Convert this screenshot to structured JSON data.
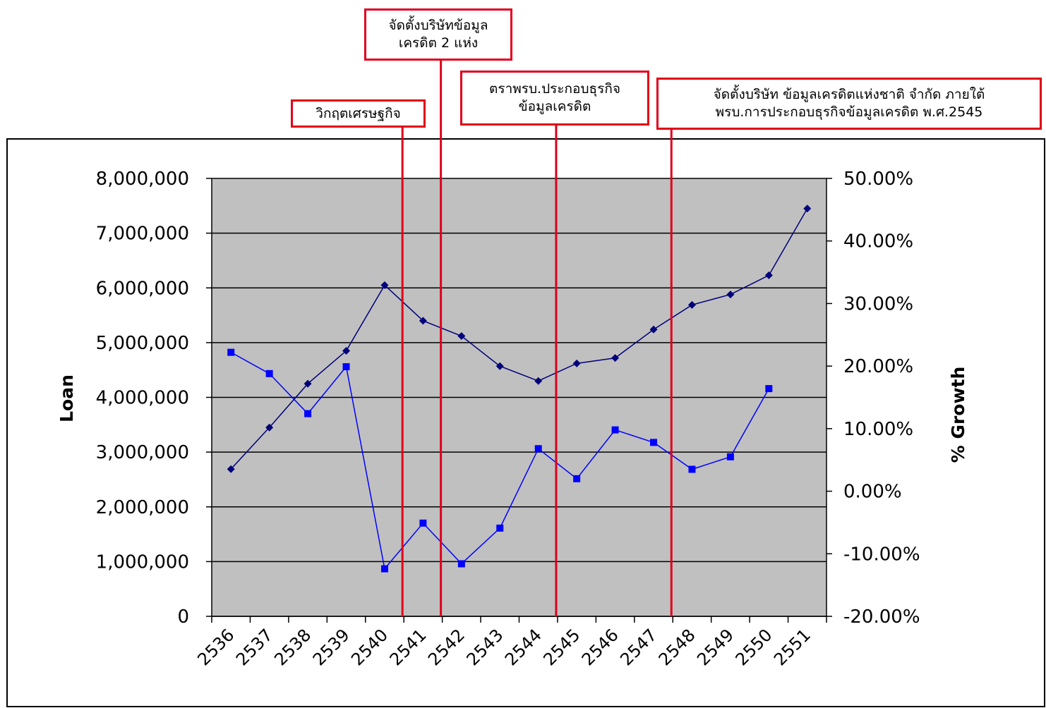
{
  "chart_data": {
    "type": "line",
    "x": [
      "2536",
      "2537",
      "2538",
      "2539",
      "2540",
      "2541",
      "2542",
      "2543",
      "2544",
      "2545",
      "2546",
      "2547",
      "2548",
      "2549",
      "2550",
      "2551"
    ],
    "ylabel": "Loan",
    "y2label": "% Growth",
    "ylim": [
      0,
      8000000
    ],
    "y2lim": [
      -0.2,
      0.5
    ],
    "y_ticks": [
      "0",
      "1,000,000",
      "2,000,000",
      "3,000,000",
      "4,000,000",
      "5,000,000",
      "6,000,000",
      "7,000,000",
      "8,000,000"
    ],
    "y2_ticks": [
      "-20.00%",
      "-10.00%",
      "0.00%",
      "10.00%",
      "20.00%",
      "30.00%",
      "40.00%",
      "50.00%"
    ],
    "grid": true,
    "series": [
      {
        "axis": "left",
        "marker": "diamond",
        "color": "#00007a",
        "values": [
          2690000,
          3450000,
          4250000,
          4850000,
          6050000,
          5400000,
          5120000,
          4570000,
          4300000,
          4620000,
          4720000,
          5240000,
          5690000,
          5880000,
          6230000,
          7450000
        ]
      },
      {
        "axis": "right",
        "marker": "square",
        "color": "#0000ff",
        "values": [
          0.222,
          0.188,
          0.124,
          0.199,
          -0.124,
          -0.051,
          -0.116,
          -0.059,
          0.068,
          0.02,
          0.098,
          0.078,
          0.035,
          0.055,
          0.164,
          null
        ]
      }
    ],
    "events": [
      {
        "label": "วิกฤตเศรษฐกิจ",
        "year": "2540"
      },
      {
        "label": "จัดตั้งบริษัทข้อมูล\nเครดิต 2 แห่ง",
        "year": "2541"
      },
      {
        "label": "ตราพรบ.ประกอบธุรกิจ\nข้อมูลเครดิต",
        "year": "2544"
      },
      {
        "label": "จัดตั้งบริษัท ข้อมูลเครดิตแห่งชาติ จำกัด ภายใต้\nพรบ.การประกอบธุรกิจข้อมูลเครดิต พ.ศ.2545",
        "year": "2547"
      }
    ]
  },
  "colors": {
    "plot_bg": "#c0c0c0",
    "event_line": "#e0001a",
    "annotation_border": "#e0001a",
    "series_loan": "#00007a",
    "series_growth": "#0000ff"
  }
}
